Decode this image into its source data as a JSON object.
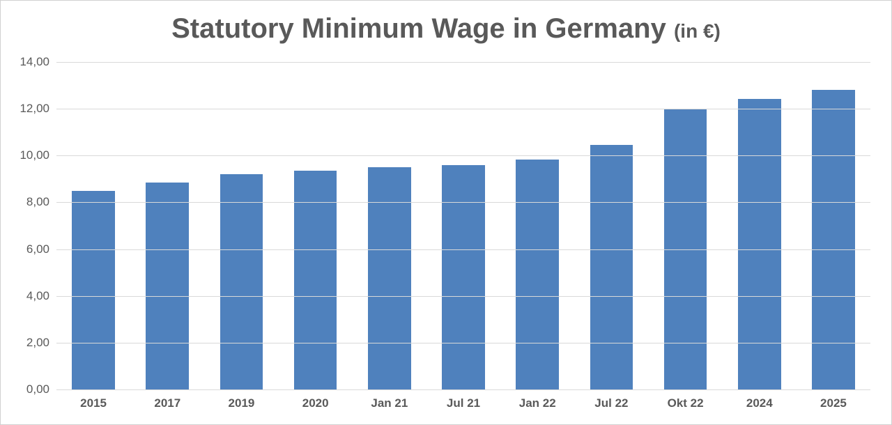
{
  "chart": {
    "type": "bar",
    "title_main": "Statutory Minimum Wage in Germany ",
    "title_sub": "(in €)",
    "title_color": "#595959",
    "title_main_fontsize": 40,
    "title_sub_fontsize": 28,
    "categories": [
      "2015",
      "2017",
      "2019",
      "2020",
      "Jan 21",
      "Jul 21",
      "Jan 22",
      "Jul 22",
      "Okt 22",
      "2024",
      "2025"
    ],
    "values": [
      8.5,
      8.84,
      9.19,
      9.35,
      9.5,
      9.6,
      9.82,
      10.45,
      12.0,
      12.41,
      12.82
    ],
    "bar_color": "#4f81bd",
    "bar_width": 0.58,
    "ylim": [
      0,
      14
    ],
    "ytick_step": 2,
    "yticks": [
      "0,00",
      "2,00",
      "4,00",
      "6,00",
      "8,00",
      "10,00",
      "12,00",
      "14,00"
    ],
    "grid_color": "#d9d9d9",
    "background_color": "#ffffff",
    "border_color": "#d0d0d0",
    "axis_label_color": "#595959",
    "axis_label_fontsize": 17,
    "x_label_fontweight": "700"
  }
}
